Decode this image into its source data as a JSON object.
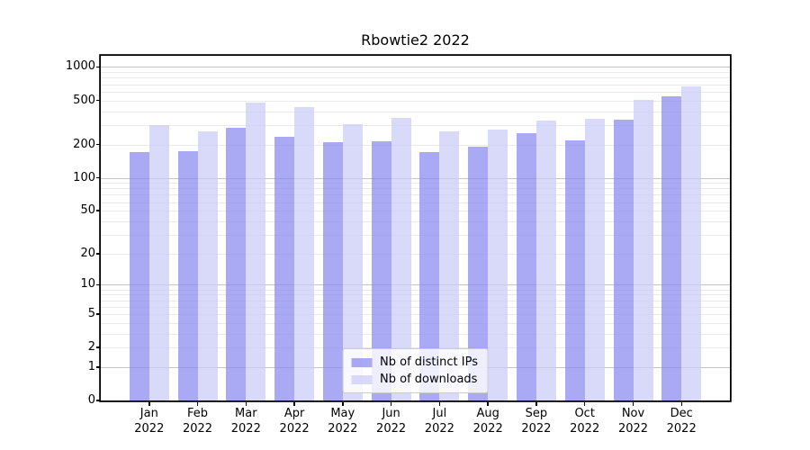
{
  "chart_data": {
    "type": "bar",
    "title": "Rbowtie2 2022",
    "categories": [
      "Jan",
      "Feb",
      "Mar",
      "Apr",
      "May",
      "Jun",
      "Jul",
      "Aug",
      "Sep",
      "Oct",
      "Nov",
      "Dec"
    ],
    "category_year": "2022",
    "series": [
      {
        "name": "Nb of distinct IPs",
        "color_key": "ips",
        "values": [
          172,
          175,
          281,
          235,
          211,
          213,
          170,
          192,
          255,
          218,
          335,
          545
        ]
      },
      {
        "name": "Nb of downloads",
        "color_key": "downloads",
        "values": [
          298,
          265,
          480,
          432,
          303,
          348,
          264,
          271,
          327,
          341,
          510,
          669
        ]
      }
    ],
    "yscale": "log1p",
    "ylim": [
      0,
      1260
    ],
    "y_ticks_labeled": [
      1000,
      500,
      200,
      100,
      50,
      20,
      10,
      5,
      2,
      1,
      0
    ],
    "y_major_grid": [
      1,
      10,
      100,
      1000
    ],
    "y_minor_grid": [
      2,
      3,
      4,
      5,
      6,
      7,
      8,
      9,
      20,
      30,
      40,
      50,
      60,
      70,
      80,
      90,
      200,
      300,
      400,
      500,
      600,
      700,
      800,
      900
    ],
    "grid": "on",
    "legend_position": "lower center"
  },
  "colors": {
    "ips": "rgba(136,136,240,0.72)",
    "downloads": "rgba(203,203,248,0.72)",
    "grid_major": "#c4c4c4",
    "grid_minor": "#eaeaea",
    "axis": "#000000",
    "text": "#000000",
    "legend_bg": "rgba(255,255,255,0.8)",
    "legend_border": "#cccccc",
    "background": "#ffffff"
  }
}
